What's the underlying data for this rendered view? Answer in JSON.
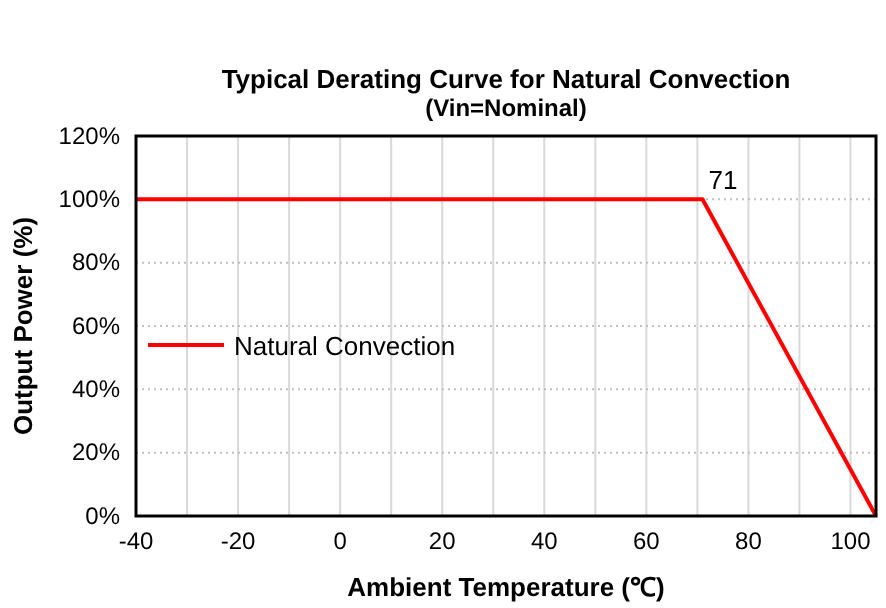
{
  "chart_data": {
    "type": "line",
    "title": "Typical Derating Curve for Natural Convection",
    "subtitle": "(Vin=Nominal)",
    "xlabel": "Ambient Temperature (℃)",
    "ylabel": "Output Power (%)",
    "x": [
      -40,
      71,
      105
    ],
    "series": [
      {
        "name": "Natural Convection",
        "color": "#ff0000",
        "values": [
          100,
          100,
          0
        ]
      }
    ],
    "xlim": [
      -40,
      105
    ],
    "xticks": [
      -40,
      {
        "value": -30,
        "label": null
      },
      -20,
      {
        "value": -10,
        "label": null
      },
      0,
      {
        "value": 10,
        "label": null
      },
      20,
      {
        "value": 30,
        "label": null
      },
      40,
      {
        "value": 50,
        "label": null
      },
      60,
      {
        "value": 70,
        "label": null
      },
      80,
      {
        "value": 90,
        "label": null
      },
      100
    ],
    "ylim": [
      0,
      120
    ],
    "yticks": [
      {
        "value": 0,
        "label": "0%"
      },
      {
        "value": 20,
        "label": "20%"
      },
      {
        "value": 40,
        "label": "40%"
      },
      {
        "value": 60,
        "label": "60%"
      },
      {
        "value": 80,
        "label": "80%"
      },
      {
        "value": 100,
        "label": "100%"
      },
      {
        "value": 120,
        "label": "120%"
      }
    ],
    "annotations": [
      {
        "text": "71",
        "x": 71,
        "y": 100
      }
    ],
    "grid": true,
    "legend": "left",
    "marker": "none",
    "line_style": "solid"
  }
}
